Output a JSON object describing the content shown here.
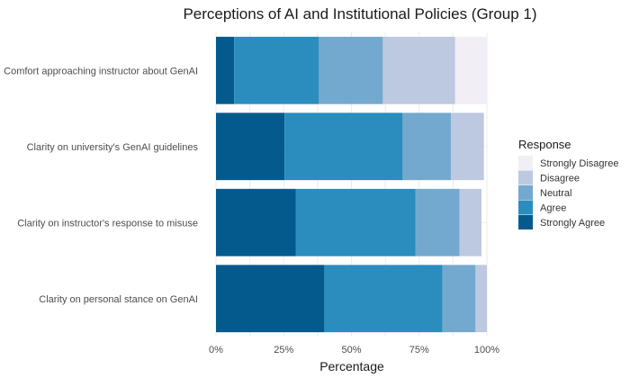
{
  "chart_data": {
    "type": "bar",
    "orientation": "horizontal",
    "stacked": true,
    "title": "Perceptions of AI and Institutional Policies (Group 1)",
    "xlabel": "Percentage",
    "ylabel": "",
    "xlim": [
      0,
      100
    ],
    "x_ticks": [
      0,
      25,
      50,
      75,
      100
    ],
    "x_tick_labels": [
      "0%",
      "25%",
      "50%",
      "75%",
      "100%"
    ],
    "grid": true,
    "legend_position": "right",
    "legend_title": "Response",
    "categories": [
      "Comfort approaching instructor about GenAI",
      "Clarity on university's GenAI guidelines",
      "Clarity on instructor's response to misuse",
      "Clarity on personal stance on GenAI"
    ],
    "series": [
      {
        "name": "Strongly Agree",
        "color": "#045a8d",
        "values": [
          6.7,
          25.3,
          29.4,
          40.0
        ]
      },
      {
        "name": "Agree",
        "color": "#2b8cbe",
        "values": [
          31.3,
          43.6,
          44.3,
          43.6
        ]
      },
      {
        "name": "Neutral",
        "color": "#74a9cf",
        "values": [
          23.6,
          17.8,
          16.2,
          12.2
        ]
      },
      {
        "name": "Disagree",
        "color": "#bdc9e1",
        "values": [
          26.7,
          12.2,
          8.1,
          4.2
        ]
      },
      {
        "name": "Strongly Disagree",
        "color": "#f1eef6",
        "values": [
          11.7,
          0.0,
          0.0,
          0.0
        ]
      }
    ],
    "legend_order": [
      "Strongly Disagree",
      "Disagree",
      "Neutral",
      "Agree",
      "Strongly Agree"
    ]
  }
}
